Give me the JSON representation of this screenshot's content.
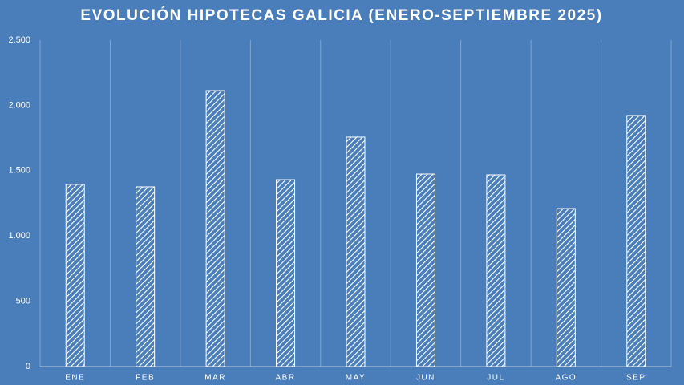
{
  "chart_data": {
    "type": "bar",
    "title": "EVOLUCIÓN HIPOTECAS GALICIA (ENERO-SEPTIEMBRE 2025)",
    "categories": [
      "ENE",
      "FEB",
      "MAR",
      "ABR",
      "MAY",
      "JUN",
      "JUL",
      "AGO",
      "SEP"
    ],
    "values": [
      1395,
      1376,
      2113,
      1431,
      1757,
      1474,
      1468,
      1210,
      1923
    ],
    "color": "#ffffff",
    "ylim": [
      0,
      2500
    ],
    "yticks": [
      0,
      500,
      {
        "value": 1000,
        "label": "1.000"
      },
      {
        "value": 1500,
        "label": "1.500"
      },
      {
        "value": 2000,
        "label": "2.000"
      },
      {
        "value": 2500,
        "label": "2.500"
      }
    ],
    "grid": "x"
  }
}
